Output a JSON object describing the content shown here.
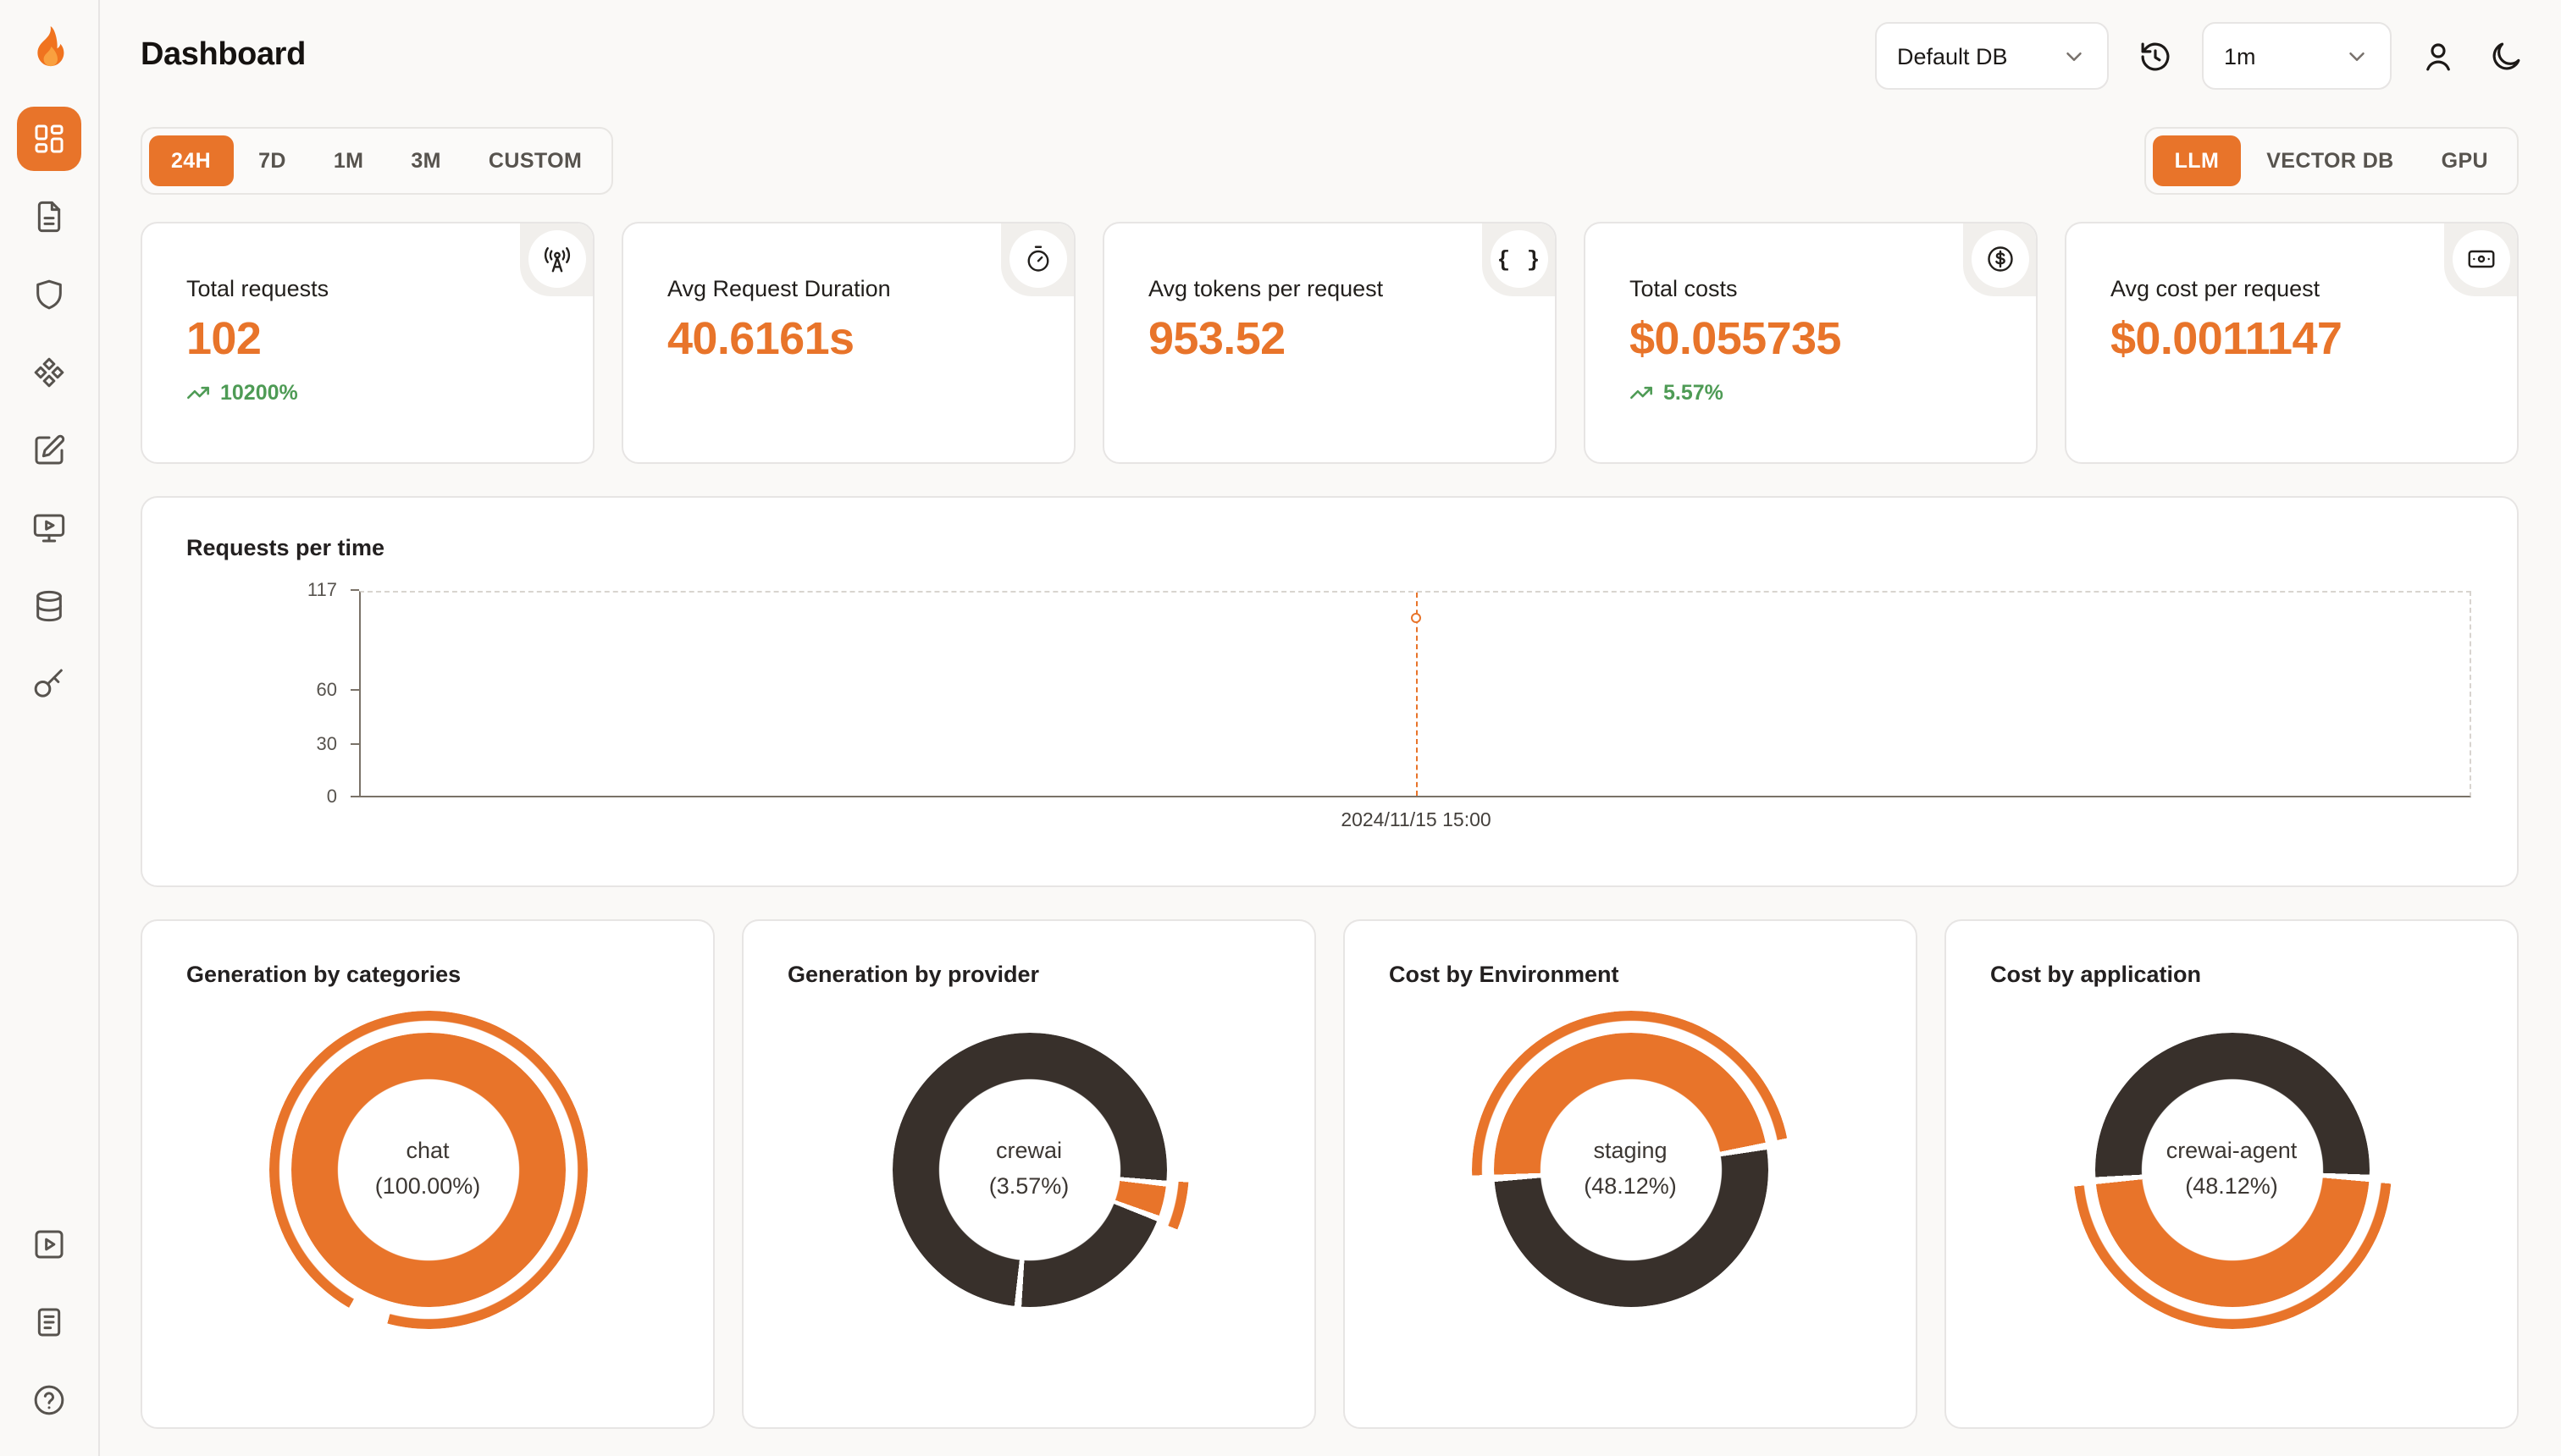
{
  "colors": {
    "accent": "#E8742A",
    "dark": "#38302B",
    "green": "#4E9B55"
  },
  "header": {
    "title": "Dashboard",
    "db_select": {
      "value": "Default DB"
    },
    "interval_select": {
      "value": "1m"
    }
  },
  "filters": {
    "time_ranges": [
      {
        "label": "24H",
        "active": true
      },
      {
        "label": "7D",
        "active": false
      },
      {
        "label": "1M",
        "active": false
      },
      {
        "label": "3M",
        "active": false
      },
      {
        "label": "CUSTOM",
        "active": false
      }
    ],
    "sources": [
      {
        "label": "LLM",
        "active": true
      },
      {
        "label": "VECTOR DB",
        "active": false
      },
      {
        "label": "GPU",
        "active": false
      }
    ]
  },
  "stats": [
    {
      "label": "Total requests",
      "value": "102",
      "delta": "10200%",
      "icon": "radio-tower-icon"
    },
    {
      "label": "Avg Request Duration",
      "value": "40.6161s",
      "icon": "timer-icon"
    },
    {
      "label": "Avg tokens per request",
      "value": "953.52",
      "icon": "braces-icon"
    },
    {
      "label": "Total costs",
      "value": "$0.055735",
      "delta": "5.57%",
      "icon": "badge-dollar-icon"
    },
    {
      "label": "Avg cost per request",
      "value": "$0.0011147",
      "icon": "banknote-icon"
    }
  ],
  "chart_data": [
    {
      "type": "line",
      "title": "Requests per time",
      "x": [
        "2024/11/15 15:00"
      ],
      "values": [
        102
      ],
      "ylim": [
        0,
        117
      ],
      "yticks": [
        0,
        30,
        60,
        117
      ],
      "marker": {
        "x_frac": 0.5,
        "value": 102
      },
      "grid": "dashed-border",
      "legend": "none"
    },
    {
      "type": "donut",
      "title": "Generation by categories",
      "center_label": "chat",
      "center_pct": "(100.00%)",
      "slices": [
        {
          "label": "chat",
          "pct": 100.0
        }
      ],
      "ring": [
        {
          "color": "accent",
          "from": 0,
          "to": 360
        }
      ],
      "outer": [
        {
          "color": "accent",
          "from": 0,
          "to": 195
        },
        {
          "color": "accent",
          "from": 210,
          "to": 360
        }
      ]
    },
    {
      "type": "donut",
      "title": "Generation by provider",
      "center_label": "crewai",
      "center_pct": "(3.57%)",
      "slices": [
        {
          "label": "crewai",
          "pct": 3.57
        }
      ],
      "ring": [
        {
          "color": "dark",
          "from": 0,
          "to": 94.5
        },
        {
          "color": "accent",
          "from": 97,
          "to": 109.5
        },
        {
          "color": "dark",
          "from": 112,
          "to": 183.5
        },
        {
          "color": "dark",
          "from": 186.5,
          "to": 360
        }
      ],
      "outer": [
        {
          "color": "accent",
          "from": 94.5,
          "to": 112
        }
      ]
    },
    {
      "type": "donut",
      "title": "Cost by Environment",
      "center_label": "staging",
      "center_pct": "(48.12%)",
      "slices": [
        {
          "label": "staging",
          "pct": 48.12
        }
      ],
      "ring": [
        {
          "color": "accent",
          "from": 0,
          "to": 78.5
        },
        {
          "color": "dark",
          "from": 81.5,
          "to": 265
        },
        {
          "color": "accent",
          "from": 268,
          "to": 360
        }
      ],
      "outer": [
        {
          "color": "accent",
          "from": 0,
          "to": 78.5
        },
        {
          "color": "accent",
          "from": 268,
          "to": 360
        }
      ]
    },
    {
      "type": "donut",
      "title": "Cost by application",
      "center_label": "crewai-agent",
      "center_pct": "(48.12%)",
      "slices": [
        {
          "label": "crewai-agent",
          "pct": 48.12
        }
      ],
      "ring": [
        {
          "color": "dark",
          "from": 0,
          "to": 92
        },
        {
          "color": "accent",
          "from": 95,
          "to": 264
        },
        {
          "color": "dark",
          "from": 267,
          "to": 360
        }
      ],
      "outer": [
        {
          "color": "accent",
          "from": 95,
          "to": 264
        }
      ]
    }
  ]
}
